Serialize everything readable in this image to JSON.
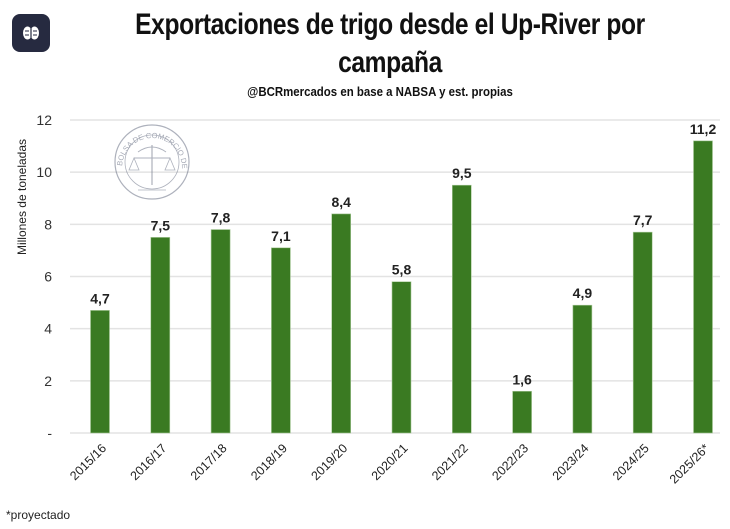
{
  "header": {
    "app_icon": "brain-icon",
    "title": "Exportaciones de trigo desde el Up-River por campaña",
    "subtitle": "@BCRmercados  en base a NABSA y est. propias"
  },
  "watermark": {
    "text": "BOLSA DE COMERCIO DE ROSARIO",
    "icon": "bcr-seal-icon"
  },
  "colors": {
    "bar": "#3a7a22",
    "grid": "#e3e3e3",
    "icon_bg": "#262a40"
  },
  "footnote": "*proyectado",
  "chart_data": {
    "type": "bar",
    "title": "Exportaciones de trigo desde el Up-River por campaña",
    "subtitle": "@BCRmercados  en base a NABSA y est. propias",
    "xlabel": "",
    "ylabel": "Millones de toneladas",
    "ylim": [
      0,
      12
    ],
    "yticks": [
      0,
      2,
      4,
      6,
      8,
      10,
      12
    ],
    "ytick_labels": [
      "-",
      "2",
      "4",
      "6",
      "8",
      "10",
      "12"
    ],
    "grid": true,
    "legend": "none",
    "categories": [
      "2015/16",
      "2016/17",
      "2017/18",
      "2018/19",
      "2019/20",
      "2020/21",
      "2021/22",
      "2022/23",
      "2023/24",
      "2024/25",
      "2025/26*"
    ],
    "values": [
      4.7,
      7.5,
      7.8,
      7.1,
      8.4,
      5.8,
      9.5,
      1.6,
      4.9,
      7.7,
      11.2
    ],
    "data_labels": [
      "4,7",
      "7,5",
      "7,8",
      "7,1",
      "8,4",
      "5,8",
      "9,5",
      "1,6",
      "4,9",
      "7,7",
      "11,2"
    ]
  }
}
